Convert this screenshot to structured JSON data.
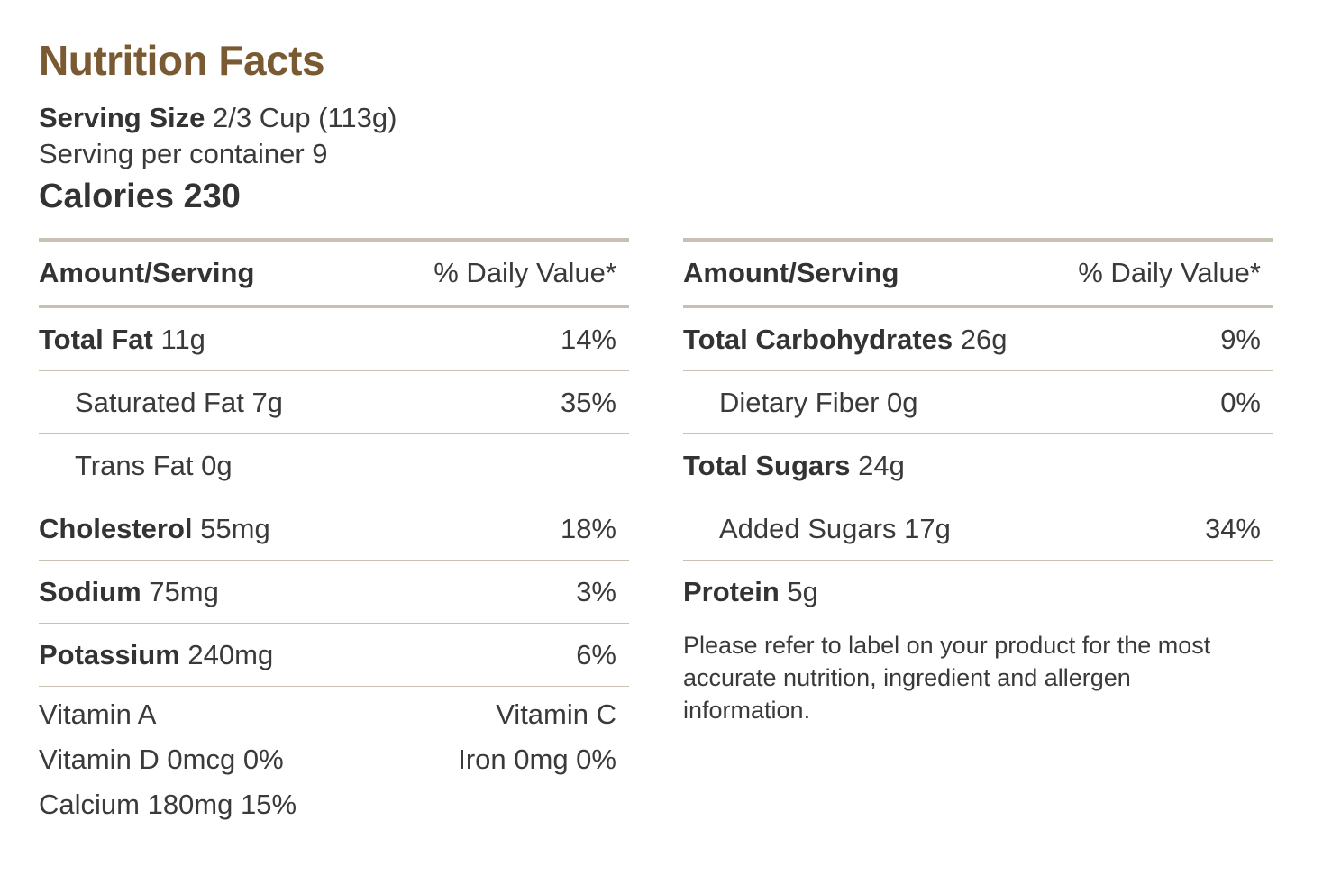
{
  "title": "Nutrition Facts",
  "serving_size": {
    "label": "Serving Size",
    "value": "2/3 Cup (113g)"
  },
  "servings_per_container": "Serving per container 9",
  "calories": "Calories 230",
  "table_header": {
    "amount": "Amount/Serving",
    "daily_value": "% Daily Value*"
  },
  "left_rows": [
    {
      "bold": "Total Fat",
      "amount": "11g",
      "dv": "14%"
    },
    {
      "bold": "",
      "amount": "Saturated Fat 7g",
      "dv": "35%"
    },
    {
      "bold": "",
      "amount": "Trans Fat 0g",
      "dv": ""
    },
    {
      "bold": "Cholesterol",
      "amount": "55mg",
      "dv": "18%"
    },
    {
      "bold": "Sodium",
      "amount": "75mg",
      "dv": "3%"
    },
    {
      "bold": "Potassium",
      "amount": "240mg",
      "dv": "6%"
    }
  ],
  "right_rows": [
    {
      "bold": "Total Carbohydrates",
      "amount": "26g",
      "dv": "9%"
    },
    {
      "bold": "",
      "amount": "Dietary Fiber 0g",
      "dv": "0%"
    },
    {
      "bold": "Total Sugars",
      "amount": "24g",
      "dv": ""
    },
    {
      "bold": "",
      "amount": "Added Sugars 17g",
      "dv": "34%"
    },
    {
      "bold": "Protein",
      "amount": "5g",
      "dv": ""
    }
  ],
  "vitamins": {
    "vitamin_a": "Vitamin A",
    "vitamin_c": "Vitamin C",
    "vitamin_d": "Vitamin D 0mcg 0%",
    "iron": "Iron 0mg 0%",
    "calcium": "Calcium 180mg 15%"
  },
  "disclaimer": "Please refer to label on your product for the most accurate nutrition, ingredient and allergen information.",
  "colors": {
    "title": "#7a5a32",
    "rule": "#c8c0b0",
    "text": "#333333"
  }
}
